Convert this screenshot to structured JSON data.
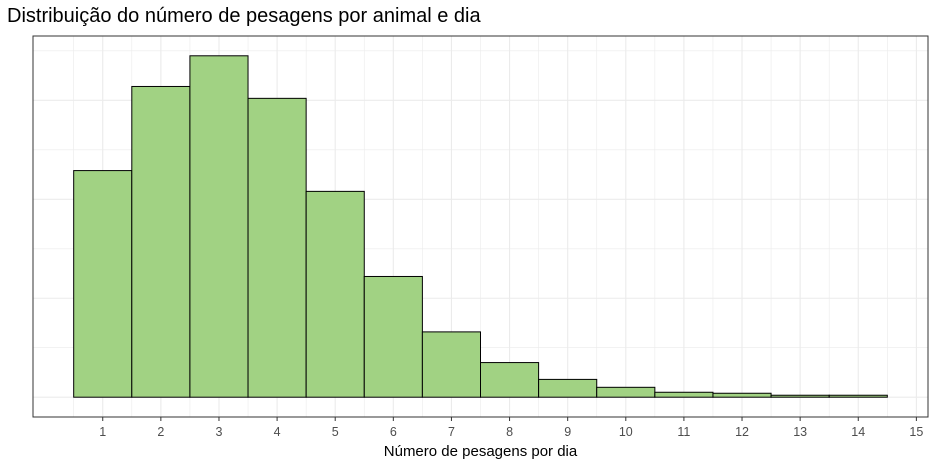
{
  "chart_data": {
    "type": "bar",
    "title": "Distribuição do número de pesagens por animal e dia",
    "xlabel": "Número de pesagens por dia",
    "ylabel": "",
    "x": [
      1,
      2,
      3,
      4,
      5,
      6,
      7,
      8,
      9,
      10,
      11,
      12,
      13,
      14
    ],
    "values": [
      229,
      314,
      345,
      302,
      208,
      122,
      66,
      35,
      18,
      10,
      5,
      4,
      2,
      2
    ],
    "xlim": [
      -0.2,
      15.2
    ],
    "ylim": [
      -20,
      365
    ],
    "x_ticks": [
      "1",
      "2",
      "3",
      "4",
      "5",
      "6",
      "7",
      "8",
      "9",
      "10",
      "11",
      "12",
      "13",
      "14",
      "15"
    ],
    "grid": true,
    "y_tick_labels_shown": false,
    "colors": {
      "bar_fill": "#a1d283",
      "bar_stroke": "#000000",
      "grid": "#ebebeb",
      "panel_border": "#333333",
      "background": "#ffffff"
    }
  }
}
